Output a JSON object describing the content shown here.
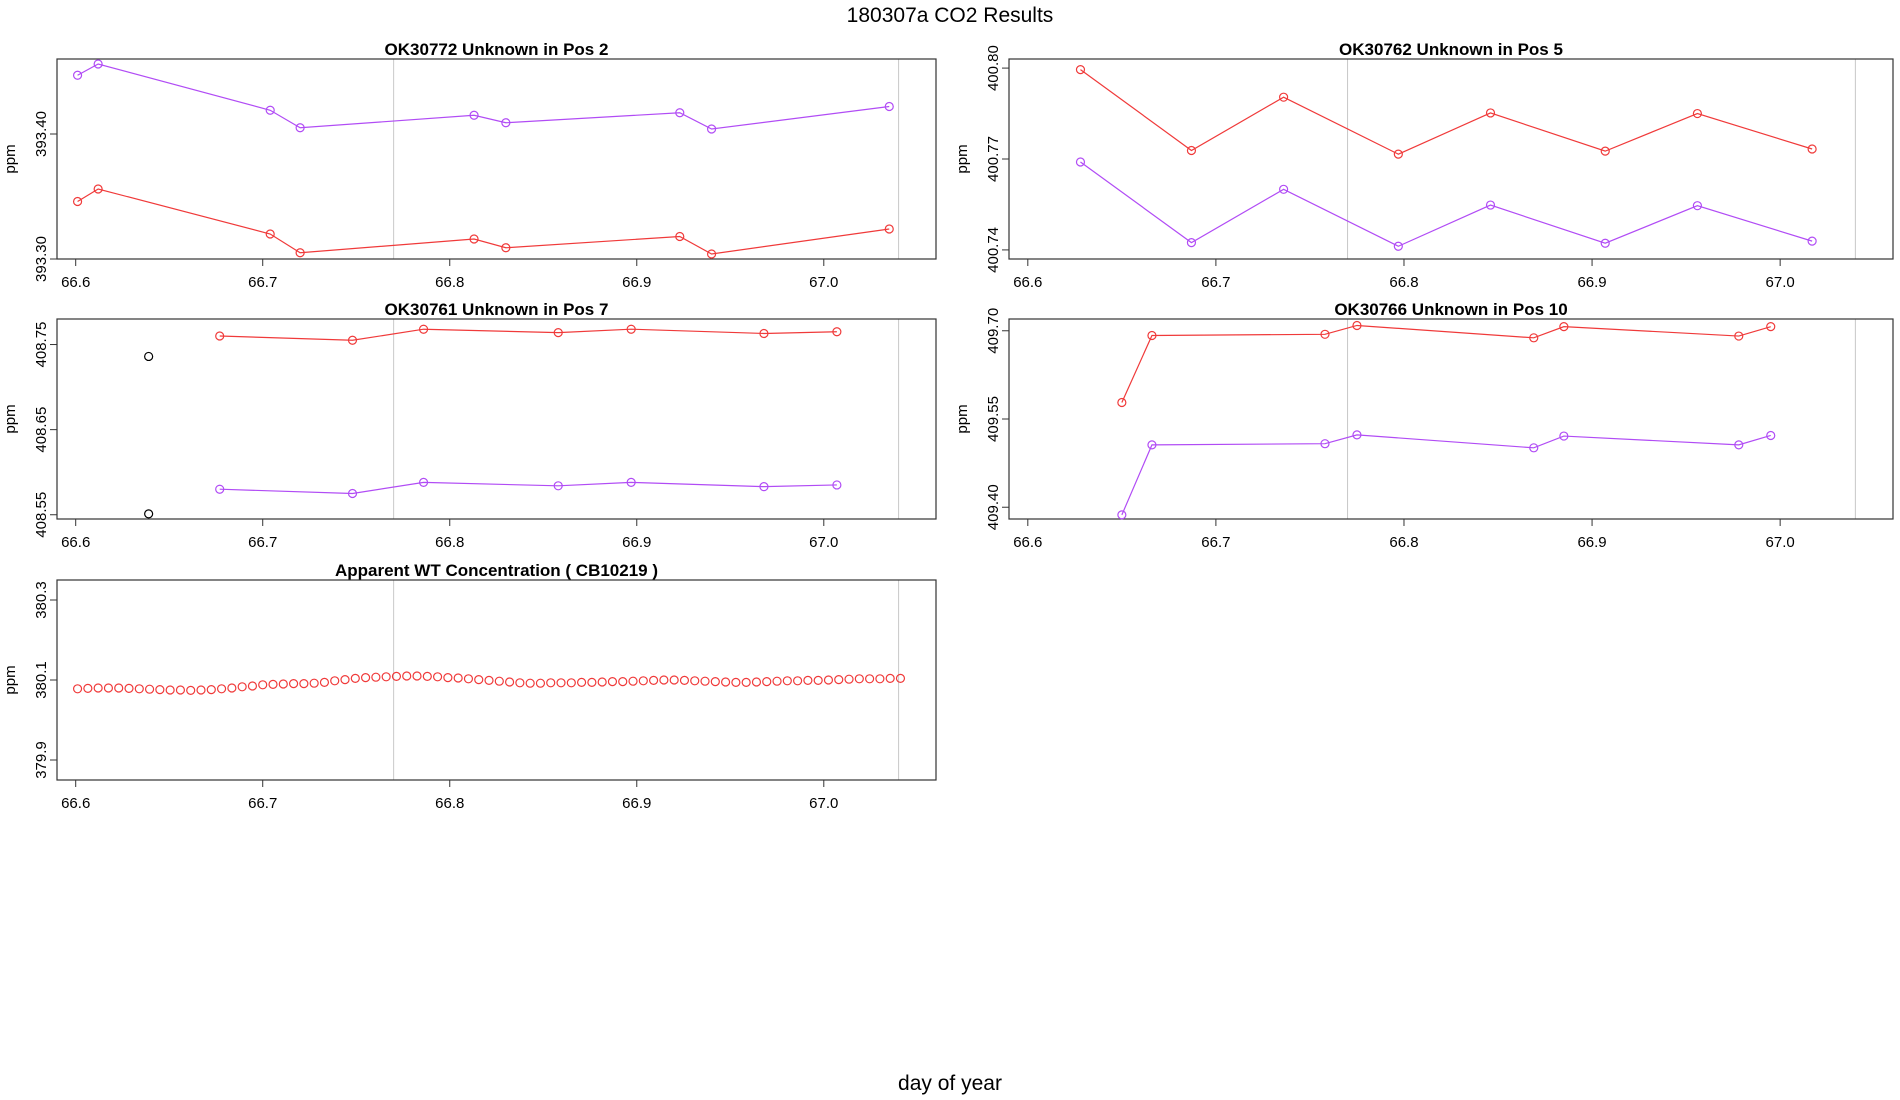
{
  "page": {
    "title": "180307a  CO2 Results",
    "xlabel": "day of year"
  },
  "colors": {
    "red": "#f03a3a",
    "purple": "#b14cf5",
    "black": "#000000",
    "axis": "#333333",
    "vline": "#c8c8c8"
  },
  "chart_data": [
    {
      "id": "p1",
      "type": "line",
      "title": "OK30772    Unknown in Pos 2",
      "ylabel": "ppm",
      "xlim": [
        66.59,
        67.06
      ],
      "ylim": [
        393.3,
        393.46
      ],
      "xticks": [
        "66.6",
        "66.7",
        "66.8",
        "66.9",
        "67.0"
      ],
      "yticks": [
        "393.30",
        "393.40"
      ],
      "vlines": [
        66.77,
        67.04
      ],
      "series": [
        {
          "name": "red",
          "color": "red",
          "line": true,
          "x": [
            66.601,
            66.612,
            66.704,
            66.72,
            66.813,
            66.83,
            66.923,
            66.94,
            67.035
          ],
          "y": [
            393.346,
            393.356,
            393.32,
            393.305,
            393.316,
            393.309,
            393.318,
            393.304,
            393.324
          ]
        },
        {
          "name": "purple",
          "color": "purple",
          "line": true,
          "x": [
            66.601,
            66.612,
            66.704,
            66.72,
            66.813,
            66.83,
            66.923,
            66.94,
            67.035
          ],
          "y": [
            393.447,
            393.456,
            393.419,
            393.405,
            393.415,
            393.409,
            393.417,
            393.404,
            393.422
          ]
        }
      ]
    },
    {
      "id": "p2",
      "type": "line",
      "title": "OK30762    Unknown in Pos 5",
      "ylabel": "ppm",
      "xlim": [
        66.59,
        67.06
      ],
      "ylim": [
        400.737,
        400.803
      ],
      "xticks": [
        "66.6",
        "66.7",
        "66.8",
        "66.9",
        "67.0"
      ],
      "yticks": [
        "400.74",
        "400.77",
        "400.80"
      ],
      "vlines": [
        66.77,
        67.04
      ],
      "series": [
        {
          "name": "red",
          "color": "red",
          "line": true,
          "x": [
            66.628,
            66.687,
            66.736,
            66.797,
            66.846,
            66.907,
            66.956,
            67.017
          ],
          "y": [
            400.7995,
            400.7728,
            400.7904,
            400.7716,
            400.7852,
            400.7726,
            400.785,
            400.7733
          ]
        },
        {
          "name": "purple",
          "color": "purple",
          "line": true,
          "x": [
            66.628,
            66.687,
            66.736,
            66.797,
            66.846,
            66.907,
            66.956,
            67.017
          ],
          "y": [
            400.769,
            400.7424,
            400.76,
            400.7412,
            400.7548,
            400.7422,
            400.7546,
            400.7429
          ]
        }
      ]
    },
    {
      "id": "p3",
      "type": "line",
      "title": "OK30761    Unknown in Pos 7",
      "ylabel": "ppm",
      "xlim": [
        66.59,
        67.06
      ],
      "ylim": [
        408.545,
        408.78
      ],
      "xticks": [
        "66.6",
        "66.7",
        "66.8",
        "66.9",
        "67.0"
      ],
      "yticks": [
        "408.55",
        "408.65",
        "408.75"
      ],
      "vlines": [
        66.77,
        67.04
      ],
      "series": [
        {
          "name": "red",
          "color": "red",
          "line": true,
          "x": [
            66.677,
            66.748,
            66.786,
            66.858,
            66.897,
            66.968,
            67.007
          ],
          "y": [
            408.76,
            408.755,
            408.768,
            408.764,
            408.768,
            408.763,
            408.765
          ]
        },
        {
          "name": "purple",
          "color": "purple",
          "line": true,
          "x": [
            66.677,
            66.748,
            66.786,
            66.858,
            66.897,
            66.968,
            67.007
          ],
          "y": [
            408.58,
            408.575,
            408.588,
            408.584,
            408.588,
            408.583,
            408.585
          ]
        },
        {
          "name": "black",
          "color": "black",
          "line": false,
          "x": [
            66.639,
            66.639
          ],
          "y": [
            408.736,
            408.551
          ]
        }
      ]
    },
    {
      "id": "p4",
      "type": "line",
      "title": "OK30766    Unknown in Pos 10",
      "ylabel": "ppm",
      "xlim": [
        66.59,
        67.06
      ],
      "ylim": [
        409.38,
        409.72
      ],
      "xticks": [
        "66.6",
        "66.7",
        "66.8",
        "66.9",
        "67.0"
      ],
      "yticks": [
        "409.40",
        "409.55",
        "409.70"
      ],
      "vlines": [
        66.77,
        67.04
      ],
      "series": [
        {
          "name": "red",
          "color": "red",
          "line": true,
          "x": [
            66.65,
            66.666,
            66.758,
            66.775,
            66.869,
            66.885,
            66.978,
            66.995
          ],
          "y": [
            409.578,
            409.692,
            409.694,
            409.709,
            409.688,
            409.707,
            409.691,
            409.707
          ]
        },
        {
          "name": "purple",
          "color": "purple",
          "line": true,
          "x": [
            66.65,
            66.666,
            66.758,
            66.775,
            66.869,
            66.885,
            66.978,
            66.995
          ],
          "y": [
            409.387,
            409.506,
            409.508,
            409.523,
            409.501,
            409.521,
            409.506,
            409.522
          ]
        }
      ]
    },
    {
      "id": "p5",
      "type": "scatter",
      "title": "Apparent WT Concentration ( CB10219 )",
      "ylabel": "ppm",
      "xlim": [
        66.59,
        67.06
      ],
      "ylim": [
        379.85,
        380.35
      ],
      "xticks": [
        "66.6",
        "66.7",
        "66.8",
        "66.9",
        "67.0"
      ],
      "yticks": [
        "379.9",
        "380.1",
        "380.3"
      ],
      "vlines": [
        66.77,
        67.04
      ],
      "series": [
        {
          "name": "red",
          "color": "red",
          "line": false,
          "x": [
            66.601,
            66.6065,
            66.612,
            66.6175,
            66.623,
            66.6285,
            66.634,
            66.6395,
            66.645,
            66.6505,
            66.656,
            66.6615,
            66.667,
            66.6725,
            66.678,
            66.6835,
            66.689,
            66.6945,
            66.7,
            66.7055,
            66.711,
            66.7165,
            66.722,
            66.7275,
            66.733,
            66.7385,
            66.744,
            66.7495,
            66.755,
            66.7605,
            66.766,
            66.7715,
            66.777,
            66.7825,
            66.788,
            66.7935,
            66.799,
            66.8045,
            66.81,
            66.8155,
            66.821,
            66.8265,
            66.832,
            66.8375,
            66.843,
            66.8485,
            66.854,
            66.8595,
            66.865,
            66.8705,
            66.876,
            66.8815,
            66.887,
            66.8925,
            66.898,
            66.9035,
            66.909,
            66.9145,
            66.92,
            66.9255,
            66.931,
            66.9365,
            66.942,
            66.9475,
            66.953,
            66.9585,
            66.964,
            66.9695,
            66.975,
            66.9805,
            66.986,
            66.9915,
            66.997,
            67.0025,
            67.008,
            67.0135,
            67.019,
            67.0245,
            67.03,
            67.0355,
            67.041
          ],
          "y": [
            380.078,
            380.079,
            380.08,
            380.08,
            380.08,
            380.079,
            380.078,
            380.077,
            380.076,
            380.075,
            380.075,
            380.074,
            380.075,
            380.076,
            380.078,
            380.08,
            380.083,
            380.085,
            380.088,
            380.089,
            380.09,
            380.091,
            380.091,
            380.092,
            380.094,
            380.098,
            380.101,
            380.104,
            380.106,
            380.107,
            380.108,
            380.109,
            380.11,
            380.11,
            380.109,
            380.108,
            380.106,
            380.105,
            380.103,
            380.101,
            380.099,
            380.097,
            380.095,
            380.093,
            380.092,
            380.092,
            380.093,
            380.093,
            380.093,
            380.094,
            380.094,
            380.095,
            380.096,
            380.096,
            380.097,
            380.098,
            380.099,
            380.1,
            380.1,
            380.099,
            380.098,
            380.097,
            380.096,
            380.095,
            380.094,
            380.094,
            380.095,
            380.096,
            380.097,
            380.098,
            380.098,
            380.099,
            380.099,
            380.1,
            380.101,
            380.102,
            380.103,
            380.103,
            380.103,
            380.104,
            380.104
          ]
        }
      ]
    }
  ]
}
